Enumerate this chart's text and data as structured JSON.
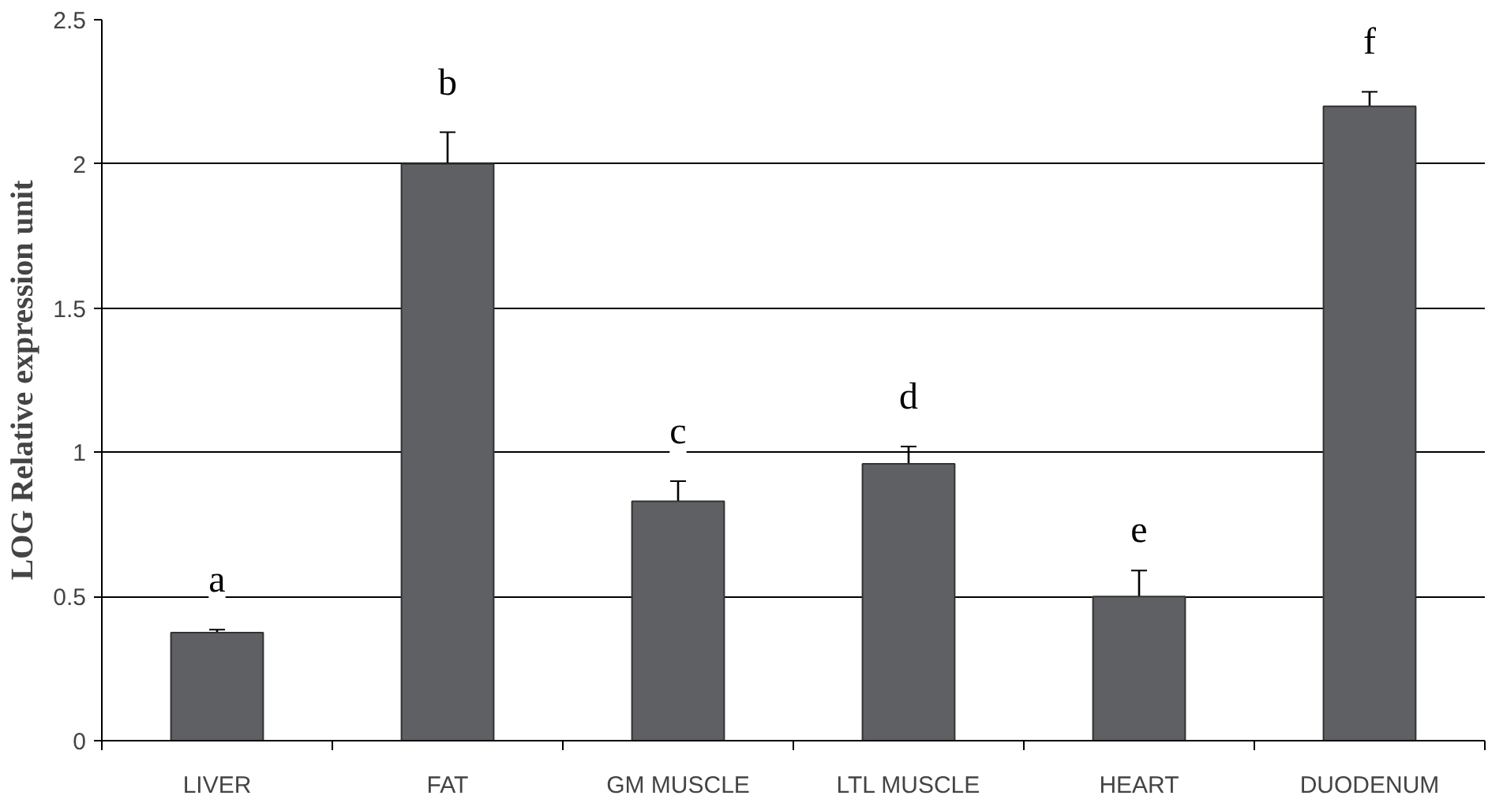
{
  "chart_data": {
    "type": "bar",
    "ylabel": "LOG Relative expression unit",
    "categories": [
      "LIVER",
      "FAT",
      "GM MUSCLE",
      "LTL MUSCLE",
      "HEART",
      "DUODENUM"
    ],
    "values": [
      0.375,
      2.0,
      0.83,
      0.96,
      0.5,
      2.2
    ],
    "color": "#5f6064",
    "errors": [
      0.01,
      0.11,
      0.07,
      0.06,
      0.09,
      0.05
    ],
    "ylim": [
      0,
      2.5
    ],
    "yticks": [
      0,
      0.5,
      1,
      1.5,
      2,
      2.5
    ],
    "grid": "y",
    "annotations": [
      "a",
      "b",
      "c",
      "d",
      "e",
      "f"
    ]
  }
}
